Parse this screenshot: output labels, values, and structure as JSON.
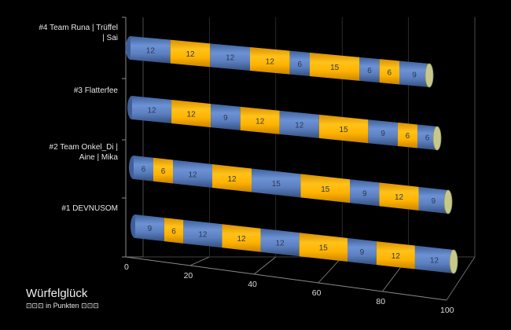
{
  "chart_data": {
    "type": "bar",
    "orientation": "horizontal",
    "stacked": true,
    "title": "Würfelglück",
    "subtitle": "⊡⊡⊡ in Punkten ⊡⊡⊡",
    "categories": [
      "#1 DEVNUSOM",
      "#2 Team Onkel_Di | Aine | Mika",
      "#3 Flatterfee",
      "#4 Team Runa | Trüffel | Sai"
    ],
    "category_lines": [
      [
        "#1 DEVNUSOM"
      ],
      [
        "#2 Team Onkel_Di |",
        "Aine | Mika"
      ],
      [
        "#3 Flatterfee"
      ],
      [
        "#4 Team Runa | Trüffel",
        "| Sai"
      ]
    ],
    "bars": [
      [
        9,
        6,
        12,
        12,
        12,
        15,
        9,
        12,
        12
      ],
      [
        6,
        6,
        12,
        12,
        15,
        15,
        9,
        12,
        9
      ],
      [
        12,
        12,
        9,
        12,
        12,
        15,
        9,
        6,
        6
      ],
      [
        12,
        12,
        12,
        12,
        6,
        15,
        6,
        6,
        9
      ]
    ],
    "segment_colors": [
      "#5b7fc0",
      "#ffb300"
    ],
    "xlim": [
      0,
      100
    ],
    "xticks": [
      0,
      20,
      40,
      60,
      80,
      100
    ],
    "grid": true
  }
}
